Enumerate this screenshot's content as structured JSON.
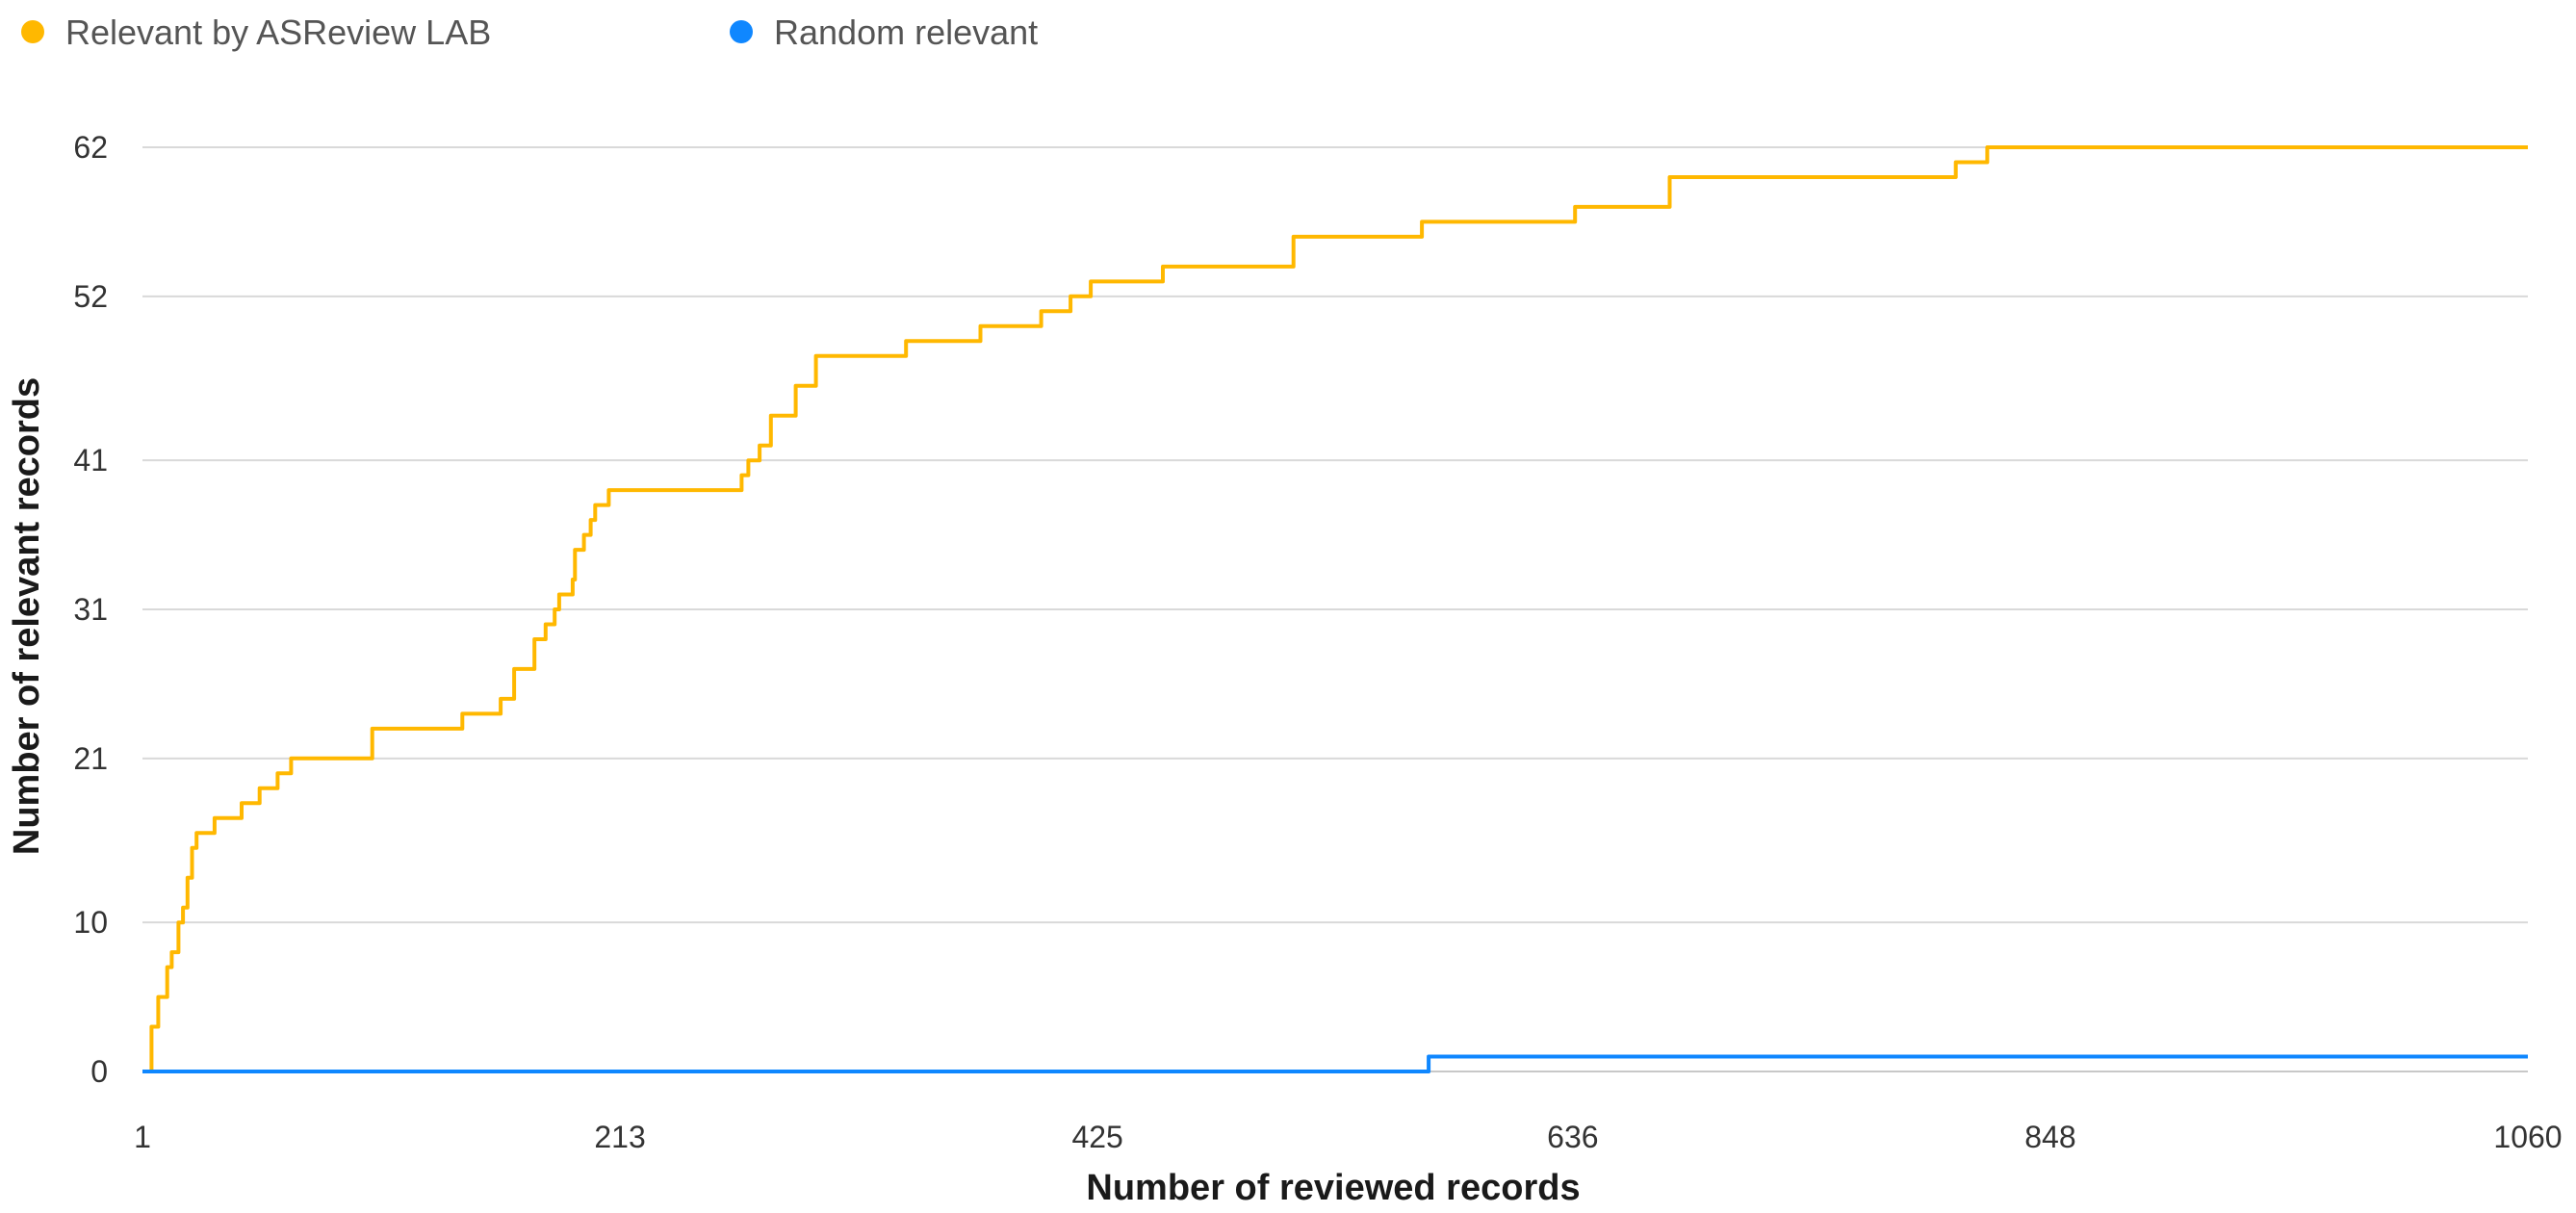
{
  "chart_data": {
    "type": "line",
    "title": "",
    "xlabel": "Number of reviewed records",
    "ylabel": "Number of relevant records",
    "xlim": [
      1,
      1060
    ],
    "ylim": [
      0,
      62
    ],
    "x_ticks": [
      1,
      213,
      425,
      636,
      848,
      1060
    ],
    "y_ticks": [
      0,
      10,
      21,
      31,
      41,
      52,
      62
    ],
    "grid": true,
    "legend_position": "top-left",
    "series": [
      {
        "name": "Relevant by ASReview LAB",
        "color": "#FFB800",
        "step": true,
        "x": [
          1,
          5,
          8,
          12,
          14,
          17,
          19,
          21,
          23,
          25,
          27,
          33,
          45,
          53,
          61,
          67,
          75,
          103,
          143,
          160,
          166,
          175,
          180,
          184,
          186,
          192,
          193,
          197,
          200,
          202,
          208,
          267,
          270,
          275,
          280,
          291,
          294,
          300,
          314,
          340,
          373,
          400,
          413,
          422,
          454,
          512,
          569,
          637,
          679,
          806,
          820
        ],
        "y": [
          0,
          3,
          5,
          7,
          8,
          10,
          11,
          13,
          15,
          16,
          16,
          17,
          18,
          19,
          20,
          21,
          21,
          23,
          24,
          25,
          27,
          29,
          30,
          31,
          32,
          33,
          35,
          36,
          37,
          38,
          39,
          40,
          41,
          42,
          44,
          46,
          46,
          48,
          48,
          49,
          50,
          51,
          52,
          53,
          54,
          56,
          57,
          58,
          60,
          61,
          62
        ]
      },
      {
        "name": "Random relevant",
        "color": "#0F87FF",
        "step": true,
        "x": [
          1,
          572
        ],
        "y": [
          0,
          1
        ]
      }
    ]
  }
}
